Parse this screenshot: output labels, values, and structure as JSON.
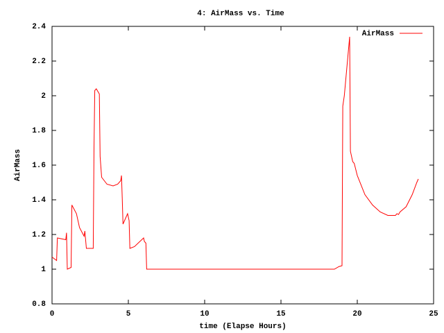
{
  "chart_data": {
    "type": "line",
    "title": "4: AirMass vs. Time",
    "x_label": "time (Elapse Hours)",
    "y_label": "AirMass",
    "legend": "top-right",
    "series": [
      {
        "name": "AirMass",
        "color": "#ff0000",
        "x": [
          0,
          0.3,
          0.35,
          0.9,
          0.95,
          1.0,
          1.25,
          1.3,
          1.6,
          1.8,
          2.1,
          2.15,
          2.25,
          2.7,
          2.75,
          2.8,
          2.9,
          3.1,
          3.15,
          3.25,
          3.6,
          4.0,
          4.3,
          4.5,
          4.55,
          4.6,
          4.65,
          4.9,
          4.95,
          5.05,
          5.1,
          5.4,
          6.0,
          6.05,
          6.15,
          6.2,
          18.5,
          18.8,
          19.0,
          19.05,
          19.15,
          19.5,
          19.55,
          19.7,
          19.8,
          20.0,
          20.5,
          21.0,
          21.5,
          22.0,
          22.5,
          22.6,
          22.7,
          22.8,
          23.2,
          23.6,
          23.9,
          24.0
        ],
        "values": [
          1.07,
          1.05,
          1.18,
          1.17,
          1.21,
          1.0,
          1.01,
          1.37,
          1.32,
          1.24,
          1.19,
          1.22,
          1.12,
          1.12,
          1.7,
          2.03,
          2.04,
          2.01,
          1.65,
          1.53,
          1.49,
          1.48,
          1.49,
          1.51,
          1.54,
          1.41,
          1.26,
          1.31,
          1.32,
          1.28,
          1.12,
          1.13,
          1.18,
          1.16,
          1.15,
          1.0,
          1.0,
          1.015,
          1.02,
          1.94,
          2.0,
          2.34,
          1.68,
          1.62,
          1.61,
          1.54,
          1.43,
          1.37,
          1.33,
          1.31,
          1.31,
          1.32,
          1.315,
          1.33,
          1.36,
          1.43,
          1.5,
          1.52
        ]
      }
    ],
    "xlim": [
      0,
      25
    ],
    "xticks": [
      0,
      5,
      10,
      15,
      20,
      25
    ],
    "ylim": [
      0.8,
      2.4
    ],
    "yticks": [
      0.8,
      1,
      1.2,
      1.4,
      1.6,
      1.8,
      2,
      2.2,
      2.4
    ]
  }
}
